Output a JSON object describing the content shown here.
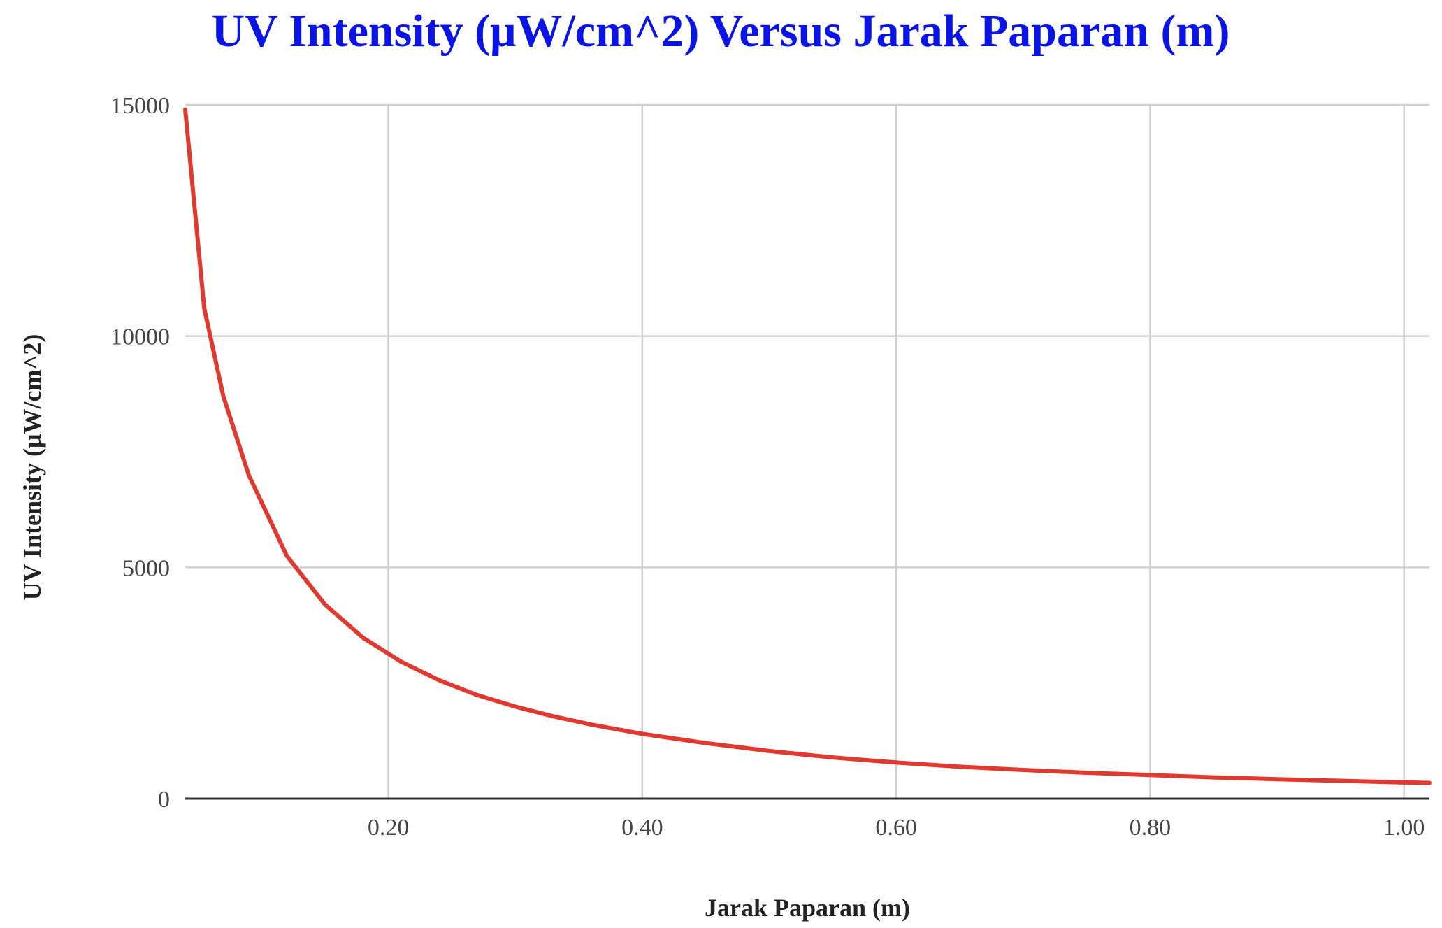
{
  "colors": {
    "title": "#0a14e6",
    "series": "#e03a30",
    "grid": "#d0d0d6",
    "baseline": "#333333"
  },
  "chart_data": {
    "type": "line",
    "title": "UV Intensity (μW/cm^2)  Versus Jarak Paparan (m)",
    "xlabel": "Jarak Paparan (m)",
    "ylabel": "UV Intensity (μW/cm^2)",
    "xlim": [
      0.04,
      1.02
    ],
    "ylim": [
      0,
      15000
    ],
    "x_ticks": [
      {
        "value": 0.2,
        "label": "0.20"
      },
      {
        "value": 0.4,
        "label": "0.40"
      },
      {
        "value": 0.6,
        "label": "0.60"
      },
      {
        "value": 0.8,
        "label": "0.80"
      },
      {
        "value": 1.0,
        "label": "1.00"
      }
    ],
    "y_ticks": [
      {
        "value": 0,
        "label": "0"
      },
      {
        "value": 5000,
        "label": "5000"
      },
      {
        "value": 10000,
        "label": "10000"
      },
      {
        "value": 15000,
        "label": "15000"
      }
    ],
    "grid": true,
    "legend": "none",
    "series": [
      {
        "x": [
          0.04,
          0.055,
          0.07,
          0.09,
          0.12,
          0.15,
          0.18,
          0.21,
          0.24,
          0.27,
          0.3,
          0.33,
          0.36,
          0.4,
          0.45,
          0.5,
          0.55,
          0.6,
          0.65,
          0.7,
          0.75,
          0.8,
          0.85,
          0.9,
          0.95,
          1.0,
          1.02
        ],
        "y": [
          14900,
          10600,
          8700,
          7000,
          5250,
          4200,
          3480,
          2960,
          2560,
          2240,
          1990,
          1780,
          1600,
          1400,
          1200,
          1030,
          890,
          780,
          690,
          620,
          560,
          510,
          460,
          420,
          385,
          350,
          340
        ]
      }
    ]
  }
}
